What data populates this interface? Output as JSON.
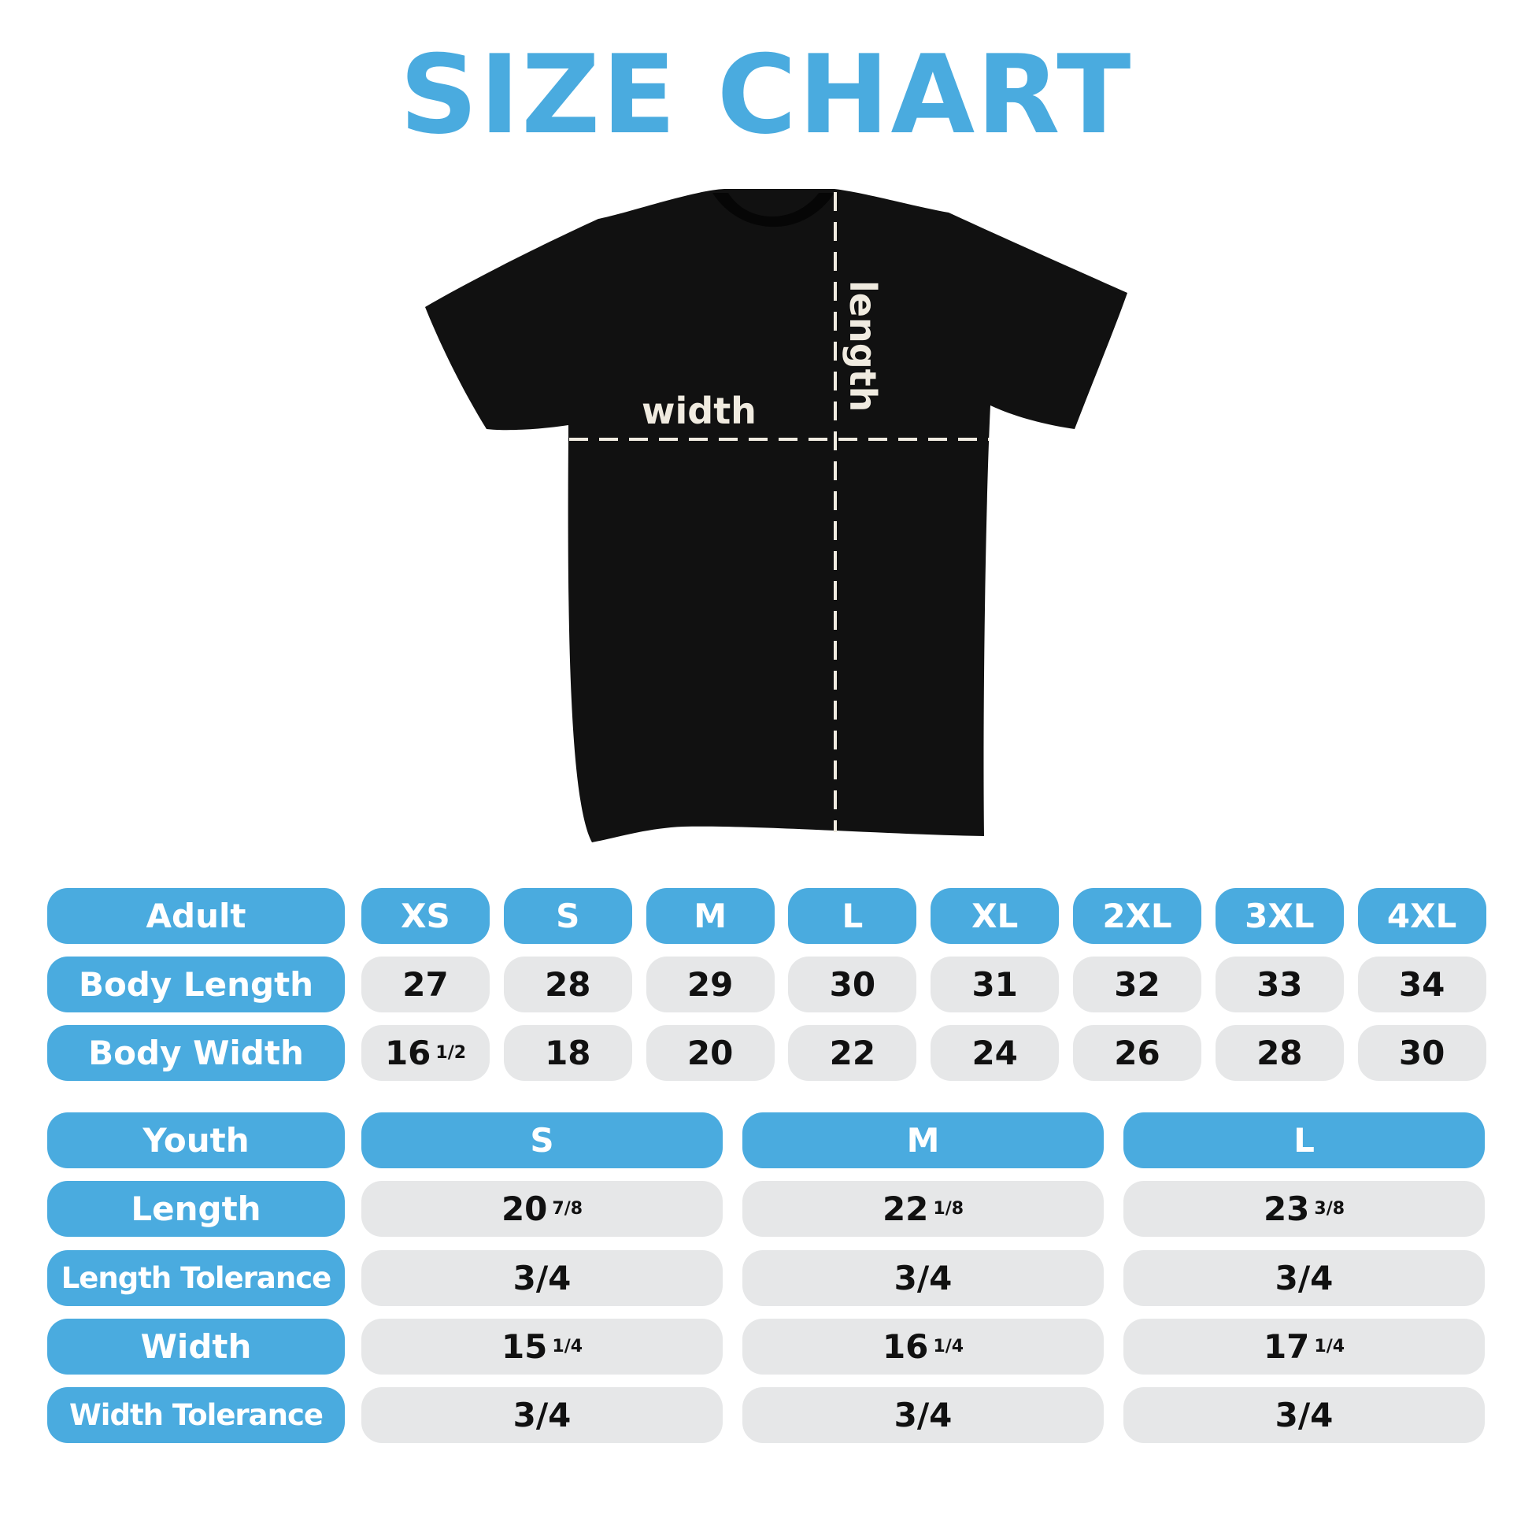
{
  "title": "SIZE CHART",
  "diagram": {
    "width_label": "width",
    "length_label": "length",
    "shirt_color": "#111111",
    "line_color": "#f0ebe0"
  },
  "colors": {
    "accent": "#4aabdf",
    "cell": "#e6e7e8"
  },
  "adult": {
    "header": "Adult",
    "sizes": [
      "XS",
      "S",
      "M",
      "L",
      "XL",
      "2XL",
      "3XL",
      "4XL"
    ],
    "rows": [
      {
        "label": "Body Length",
        "values": [
          [
            "27",
            ""
          ],
          [
            "28",
            ""
          ],
          [
            "29",
            ""
          ],
          [
            "30",
            ""
          ],
          [
            "31",
            ""
          ],
          [
            "32",
            ""
          ],
          [
            "33",
            ""
          ],
          [
            "34",
            ""
          ]
        ]
      },
      {
        "label": "Body Width",
        "values": [
          [
            "16",
            "1/2"
          ],
          [
            "18",
            ""
          ],
          [
            "20",
            ""
          ],
          [
            "22",
            ""
          ],
          [
            "24",
            ""
          ],
          [
            "26",
            ""
          ],
          [
            "28",
            ""
          ],
          [
            "30",
            ""
          ]
        ]
      }
    ]
  },
  "youth": {
    "header": "Youth",
    "sizes": [
      "S",
      "M",
      "L"
    ],
    "rows": [
      {
        "label": "Length",
        "values": [
          [
            "20",
            "7/8"
          ],
          [
            "22",
            "1/8"
          ],
          [
            "23",
            "3/8"
          ]
        ]
      },
      {
        "label": "Length Tolerance",
        "values": [
          [
            "3/4",
            ""
          ],
          [
            "3/4",
            ""
          ],
          [
            "3/4",
            ""
          ]
        ]
      },
      {
        "label": "Width",
        "values": [
          [
            "15",
            "1/4"
          ],
          [
            "16",
            "1/4"
          ],
          [
            "17",
            "1/4"
          ]
        ]
      },
      {
        "label": "Width Tolerance",
        "values": [
          [
            "3/4",
            ""
          ],
          [
            "3/4",
            ""
          ],
          [
            "3/4",
            ""
          ]
        ]
      }
    ]
  }
}
